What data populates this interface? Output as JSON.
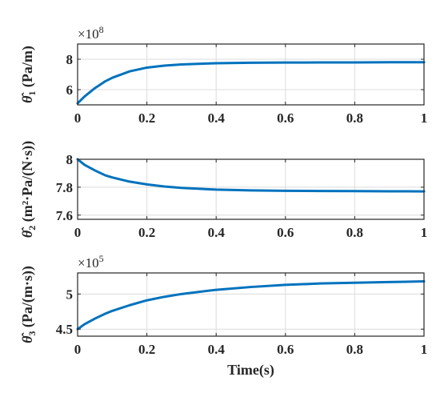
{
  "chart_data": [
    {
      "type": "line",
      "title": "",
      "ylabel": "θ̂1 (Pa/m)",
      "ylabel_parts": {
        "sym": "θ̂",
        "sub": "1",
        "unit": "(Pa/m)"
      },
      "xlabel": "",
      "multiplier": {
        "base": "×10",
        "exp": "8"
      },
      "xlim": [
        0,
        1
      ],
      "ylim": [
        5,
        9
      ],
      "xticks": [
        "0",
        "0.2",
        "0.4",
        "0.6",
        "0.8",
        "1"
      ],
      "xtick_values": [
        0,
        0.2,
        0.4,
        0.6,
        0.8,
        1
      ],
      "yticks": [
        "6",
        "8"
      ],
      "ytick_values": [
        6,
        8
      ],
      "grid": true,
      "series": [
        {
          "color": "#0072BD",
          "x": [
            0,
            0.02,
            0.05,
            0.08,
            0.1,
            0.15,
            0.2,
            0.25,
            0.3,
            0.4,
            0.5,
            0.6,
            0.7,
            0.8,
            0.9,
            1.0
          ],
          "y": [
            5.1,
            5.55,
            6.1,
            6.55,
            6.78,
            7.2,
            7.45,
            7.58,
            7.66,
            7.74,
            7.77,
            7.78,
            7.79,
            7.79,
            7.8,
            7.8
          ]
        }
      ]
    },
    {
      "type": "line",
      "title": "",
      "ylabel": "θ̂2 (m²·Pa/(N·s))",
      "ylabel_parts": {
        "sym": "θ̂",
        "sub": "2",
        "unit": "(m²·Pa/(N·s))"
      },
      "xlabel": "",
      "xlim": [
        0,
        1
      ],
      "ylim": [
        7.57,
        8.0
      ],
      "xticks": [
        "0",
        "0.2",
        "0.4",
        "0.6",
        "0.8",
        "1"
      ],
      "xtick_values": [
        0,
        0.2,
        0.4,
        0.6,
        0.8,
        1
      ],
      "yticks": [
        "7.6",
        "7.8",
        "8"
      ],
      "ytick_values": [
        7.6,
        7.8,
        8.0
      ],
      "grid": true,
      "series": [
        {
          "color": "#0072BD",
          "x": [
            0,
            0.02,
            0.05,
            0.08,
            0.1,
            0.15,
            0.2,
            0.25,
            0.3,
            0.4,
            0.5,
            0.6,
            0.7,
            0.8,
            0.9,
            1.0
          ],
          "y": [
            8.0,
            7.96,
            7.92,
            7.885,
            7.87,
            7.84,
            7.82,
            7.805,
            7.795,
            7.783,
            7.777,
            7.774,
            7.773,
            7.772,
            7.771,
            7.77
          ]
        }
      ]
    },
    {
      "type": "line",
      "title": "",
      "ylabel": "θ̂3 (Pa/(m·s))",
      "ylabel_parts": {
        "sym": "θ̂",
        "sub": "3",
        "unit": "(Pa/(m·s))"
      },
      "xlabel": "Time(s)",
      "multiplier": {
        "base": "×10",
        "exp": "5"
      },
      "xlim": [
        0,
        1
      ],
      "ylim": [
        4.4,
        5.3
      ],
      "xticks": [
        "0",
        "0.2",
        "0.4",
        "0.6",
        "0.8",
        "1"
      ],
      "xtick_values": [
        0,
        0.2,
        0.4,
        0.6,
        0.8,
        1
      ],
      "yticks": [
        "4.5",
        "5"
      ],
      "ytick_values": [
        4.5,
        5.0
      ],
      "grid": true,
      "series": [
        {
          "color": "#0072BD",
          "x": [
            0,
            0.02,
            0.05,
            0.08,
            0.1,
            0.15,
            0.2,
            0.25,
            0.3,
            0.4,
            0.5,
            0.6,
            0.7,
            0.8,
            0.9,
            1.0
          ],
          "y": [
            4.5,
            4.57,
            4.65,
            4.72,
            4.76,
            4.84,
            4.91,
            4.96,
            5.0,
            5.06,
            5.1,
            5.13,
            5.15,
            5.16,
            5.17,
            5.18
          ]
        }
      ]
    }
  ]
}
